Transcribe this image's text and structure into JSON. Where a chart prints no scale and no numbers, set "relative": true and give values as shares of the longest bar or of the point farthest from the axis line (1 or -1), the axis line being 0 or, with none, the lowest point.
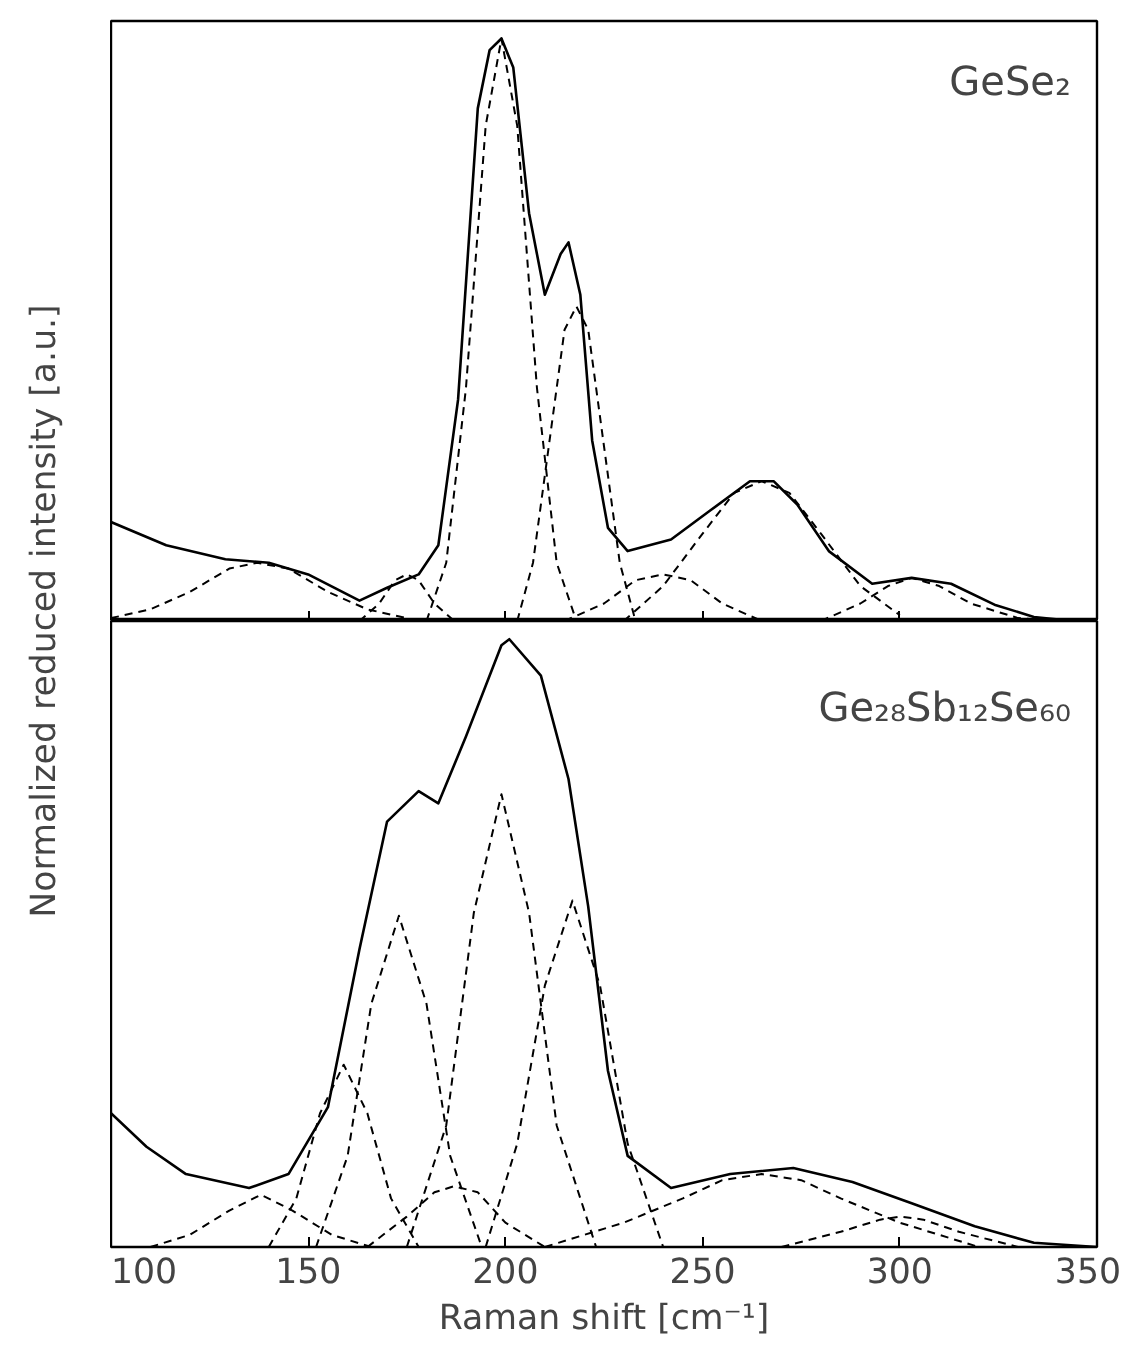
{
  "chart_data": [
    {
      "type": "line",
      "relative": true,
      "ylabel": "Normalized reduced intensity [a.u.]",
      "annotations": [
        "GeSe₂"
      ],
      "xlim": [
        100,
        350
      ],
      "xticks": [
        100,
        150,
        200,
        250,
        300,
        350
      ],
      "tick_labels": false,
      "grid": false,
      "marker": "none",
      "series": [
        {
          "color": "#000000",
          "line_style": "solid",
          "x": [
            100,
            114,
            129,
            140,
            150,
            163,
            170,
            178,
            183,
            188,
            193,
            196,
            199,
            202,
            206,
            210,
            214,
            216,
            219,
            222,
            226,
            231,
            242,
            252,
            262,
            268,
            274,
            282,
            293,
            303,
            313,
            324,
            334,
            344,
            350
          ],
          "values": [
            0.17,
            0.13,
            0.106,
            0.1,
            0.08,
            0.035,
            0.057,
            0.08,
            0.13,
            0.38,
            0.88,
            0.98,
            1.0,
            0.95,
            0.7,
            0.56,
            0.63,
            0.65,
            0.56,
            0.31,
            0.16,
            0.12,
            0.14,
            0.19,
            0.24,
            0.24,
            0.2,
            0.12,
            0.064,
            0.074,
            0.064,
            0.028,
            0.007,
            0,
            0
          ]
        },
        {
          "color": "#000000",
          "line_style": "dashed",
          "x": [
            100,
            110,
            120,
            130,
            137,
            145,
            155,
            165,
            175
          ],
          "values": [
            0.005,
            0.02,
            0.05,
            0.09,
            0.1,
            0.09,
            0.05,
            0.02,
            0.005
          ]
        },
        {
          "color": "#000000",
          "line_style": "dashed",
          "x": [
            163,
            168,
            172,
            175,
            178,
            182,
            187
          ],
          "values": [
            0,
            0.03,
            0.07,
            0.08,
            0.07,
            0.03,
            0
          ]
        },
        {
          "color": "#000000",
          "line_style": "dashed",
          "x": [
            180,
            185,
            190,
            195,
            199,
            203,
            208,
            213,
            218
          ],
          "values": [
            0,
            0.1,
            0.4,
            0.85,
            1.0,
            0.85,
            0.4,
            0.1,
            0
          ]
        },
        {
          "color": "#000000",
          "line_style": "dashed",
          "x": [
            203,
            207,
            211,
            215,
            218,
            221,
            225,
            229,
            233
          ],
          "values": [
            0,
            0.1,
            0.3,
            0.5,
            0.54,
            0.5,
            0.3,
            0.1,
            0
          ]
        },
        {
          "color": "#000000",
          "line_style": "dashed",
          "x": [
            215,
            225,
            233,
            240,
            247,
            255,
            265
          ],
          "values": [
            0,
            0.03,
            0.07,
            0.08,
            0.07,
            0.03,
            0
          ]
        },
        {
          "color": "#000000",
          "line_style": "dashed",
          "x": [
            230,
            240,
            250,
            258,
            265,
            272,
            280,
            290,
            300
          ],
          "values": [
            0,
            0.06,
            0.15,
            0.22,
            0.24,
            0.22,
            0.15,
            0.06,
            0.01
          ]
        },
        {
          "color": "#000000",
          "line_style": "dashed",
          "x": [
            280,
            290,
            297,
            303,
            310,
            318,
            330,
            340
          ],
          "values": [
            0,
            0.03,
            0.06,
            0.074,
            0.06,
            0.03,
            0.005,
            0
          ]
        }
      ]
    },
    {
      "type": "line",
      "relative": true,
      "xlabel": "Raman shift [cm⁻¹]",
      "annotations": [
        "Ge₂₈Sb₁₂Se₆₀"
      ],
      "xlim": [
        100,
        350
      ],
      "xticks": [
        100,
        150,
        200,
        250,
        300,
        350
      ],
      "tick_labels": "x",
      "grid": false,
      "marker": "none",
      "series": [
        {
          "color": "#000000",
          "line_style": "solid",
          "x": [
            100,
            109,
            119,
            135,
            145,
            155,
            163,
            170,
            178,
            183,
            190,
            199,
            201,
            209,
            216,
            221,
            226,
            231,
            242,
            257,
            273,
            288,
            303,
            319,
            334,
            350
          ],
          "values": [
            0.22,
            0.165,
            0.12,
            0.097,
            0.12,
            0.23,
            0.49,
            0.7,
            0.75,
            0.73,
            0.84,
            0.99,
            1.0,
            0.94,
            0.77,
            0.56,
            0.29,
            0.15,
            0.097,
            0.12,
            0.13,
            0.107,
            0.072,
            0.034,
            0.007,
            0
          ]
        },
        {
          "color": "#000000",
          "line_style": "dashed",
          "x": [
            110,
            120,
            130,
            138,
            146,
            156,
            166
          ],
          "values": [
            0,
            0.02,
            0.06,
            0.086,
            0.06,
            0.02,
            0
          ]
        },
        {
          "color": "#000000",
          "line_style": "dashed",
          "x": [
            140,
            147,
            153,
            159,
            165,
            171,
            178
          ],
          "values": [
            0,
            0.08,
            0.22,
            0.3,
            0.22,
            0.08,
            0
          ]
        },
        {
          "color": "#000000",
          "line_style": "dashed",
          "x": [
            152,
            160,
            166,
            173,
            180,
            186,
            194
          ],
          "values": [
            0,
            0.15,
            0.4,
            0.545,
            0.4,
            0.15,
            0
          ]
        },
        {
          "color": "#000000",
          "line_style": "dashed",
          "x": [
            165,
            175,
            182,
            187,
            193,
            200,
            210
          ],
          "values": [
            0,
            0.05,
            0.09,
            0.1,
            0.09,
            0.04,
            0
          ]
        },
        {
          "color": "#000000",
          "line_style": "dashed",
          "x": [
            175,
            185,
            192,
            199,
            206,
            213,
            223
          ],
          "values": [
            0,
            0.2,
            0.55,
            0.745,
            0.55,
            0.2,
            0
          ]
        },
        {
          "color": "#000000",
          "line_style": "dashed",
          "x": [
            195,
            203,
            210,
            217,
            224,
            231,
            240
          ],
          "values": [
            0,
            0.17,
            0.43,
            0.57,
            0.43,
            0.17,
            0
          ]
        },
        {
          "color": "#000000",
          "line_style": "dashed",
          "x": [
            210,
            230,
            245,
            255,
            265,
            275,
            285,
            300,
            320
          ],
          "values": [
            0,
            0.04,
            0.08,
            0.11,
            0.12,
            0.11,
            0.08,
            0.04,
            0
          ]
        },
        {
          "color": "#000000",
          "line_style": "dashed",
          "x": [
            270,
            285,
            295,
            300,
            306,
            315,
            330
          ],
          "values": [
            0,
            0.025,
            0.045,
            0.05,
            0.045,
            0.025,
            0
          ]
        }
      ]
    }
  ]
}
